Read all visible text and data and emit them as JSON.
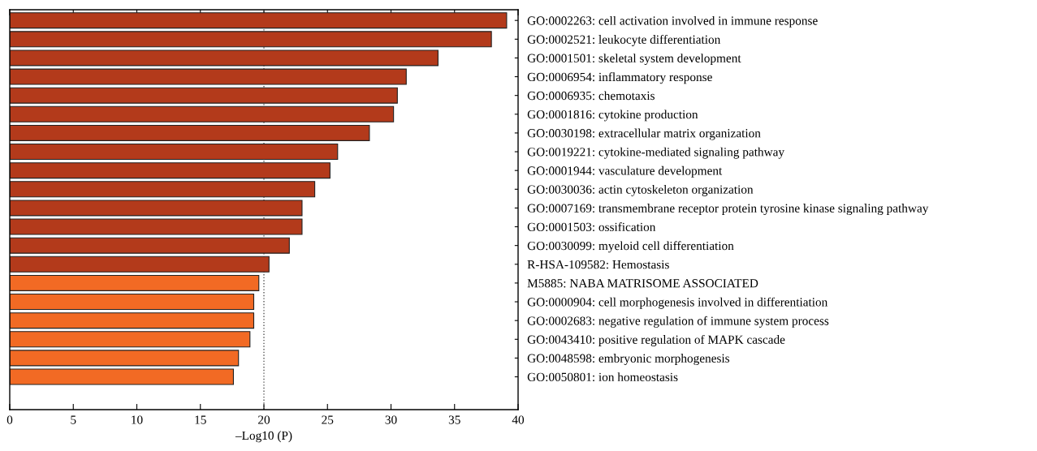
{
  "chart_data": {
    "type": "bar",
    "orientation": "horizontal",
    "xlabel": "–Log10 (P)",
    "categories": [
      "GO:0002263: cell activation involved in immune response",
      "GO:0002521: leukocyte differentiation",
      "GO:0001501: skeletal system development",
      "GO:0006954: inflammatory response",
      "GO:0006935: chemotaxis",
      "GO:0001816: cytokine production",
      "GO:0030198: extracellular matrix organization",
      "GO:0019221: cytokine-mediated signaling pathway",
      "GO:0001944: vasculature development",
      "GO:0030036: actin cytoskeleton organization",
      "GO:0007169: transmembrane receptor protein tyrosine kinase signaling pathway",
      "GO:0001503: ossification",
      "GO:0030099: myeloid cell differentiation",
      "R-HSA-109582: Hemostasis",
      "M5885: NABA MATRISOME ASSOCIATED",
      "GO:0000904: cell morphogenesis involved in differentiation",
      "GO:0002683: negative regulation of immune system process",
      "GO:0043410: positive regulation of MAPK cascade",
      "GO:0048598: embryonic morphogenesis",
      "GO:0050801: ion homeostasis"
    ],
    "values": [
      39.1,
      37.9,
      33.7,
      31.2,
      30.5,
      30.2,
      28.3,
      25.8,
      25.2,
      24.0,
      23.0,
      23.0,
      22.0,
      20.4,
      19.6,
      19.2,
      19.2,
      18.9,
      18.0,
      17.6
    ],
    "colors": [
      "#b33a1b",
      "#b33a1b",
      "#b33a1b",
      "#b33a1b",
      "#b33a1b",
      "#b33a1b",
      "#b33a1b",
      "#b33a1b",
      "#b33a1b",
      "#b33a1b",
      "#b33a1b",
      "#b33a1b",
      "#b33a1b",
      "#b33a1b",
      "#f26a24",
      "#f26a24",
      "#f26a24",
      "#f26a24",
      "#f26a24",
      "#f26a24"
    ],
    "xlim": [
      0,
      40
    ],
    "xticks": [
      0,
      5,
      10,
      15,
      20,
      25,
      30,
      35,
      40
    ],
    "ref_lines": [
      {
        "axis": "x",
        "value": 20,
        "line_style": "dotted",
        "color": "#555555"
      }
    ],
    "grid": false
  }
}
